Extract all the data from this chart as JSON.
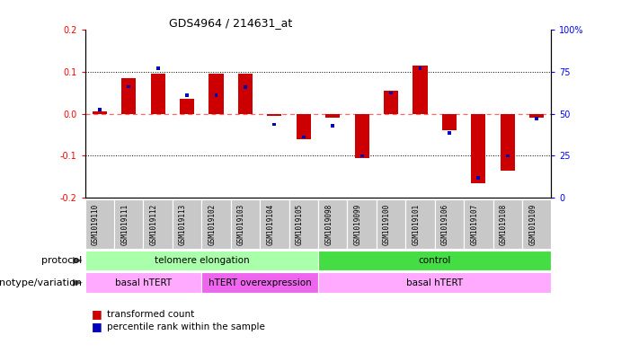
{
  "title": "GDS4964 / 214631_at",
  "samples": [
    "GSM1019110",
    "GSM1019111",
    "GSM1019112",
    "GSM1019113",
    "GSM1019102",
    "GSM1019103",
    "GSM1019104",
    "GSM1019105",
    "GSM1019098",
    "GSM1019099",
    "GSM1019100",
    "GSM1019101",
    "GSM1019106",
    "GSM1019107",
    "GSM1019108",
    "GSM1019109"
  ],
  "red_values": [
    0.005,
    0.085,
    0.095,
    0.035,
    0.095,
    0.095,
    -0.005,
    -0.06,
    -0.01,
    -0.105,
    0.055,
    0.115,
    -0.04,
    -0.165,
    -0.135,
    -0.01
  ],
  "blue_marker_vals": [
    0.01,
    0.065,
    0.108,
    0.045,
    0.045,
    0.063,
    -0.025,
    -0.055,
    -0.028,
    -0.1,
    0.05,
    0.108,
    -0.045,
    -0.152,
    -0.1,
    -0.012
  ],
  "ylim": [
    -0.2,
    0.2
  ],
  "yticks_left": [
    -0.2,
    -0.1,
    0.0,
    0.1,
    0.2
  ],
  "yticks_right": [
    0,
    25,
    50,
    75,
    100
  ],
  "yticks_right_vals": [
    -0.2,
    -0.1,
    0.0,
    0.1,
    0.2
  ],
  "hlines_dotted": [
    0.1,
    -0.1
  ],
  "zero_line_color": "#FF6666",
  "protocol_groups": [
    {
      "label": "telomere elongation",
      "start": 0,
      "end": 8,
      "color": "#AAFFAA"
    },
    {
      "label": "control",
      "start": 8,
      "end": 16,
      "color": "#44DD44"
    }
  ],
  "genotype_groups": [
    {
      "label": "basal hTERT",
      "start": 0,
      "end": 4,
      "color": "#FFAAFF"
    },
    {
      "label": "hTERT overexpression",
      "start": 4,
      "end": 8,
      "color": "#EE66EE"
    },
    {
      "label": "basal hTERT",
      "start": 8,
      "end": 16,
      "color": "#FFAAFF"
    }
  ],
  "legend_items": [
    {
      "label": "transformed count",
      "color": "#CC0000"
    },
    {
      "label": "percentile rank within the sample",
      "color": "#0000CC"
    }
  ],
  "bar_width": 0.5,
  "blue_marker_size": 0.12,
  "protocol_label": "protocol",
  "genotype_label": "genotype/variation",
  "sample_bg_color": "#C8C8C8",
  "plot_bg_color": "#FFFFFF"
}
